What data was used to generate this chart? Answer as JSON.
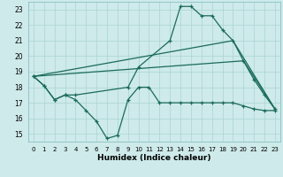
{
  "xlabel": "Humidex (Indice chaleur)",
  "background_color": "#ceeaea",
  "grid_color": "#aad4d4",
  "line_color": "#1a6b5a",
  "xlim": [
    -0.5,
    23.5
  ],
  "ylim": [
    14.5,
    23.5
  ],
  "xticks": [
    0,
    1,
    2,
    3,
    4,
    5,
    6,
    7,
    8,
    9,
    10,
    11,
    12,
    13,
    14,
    15,
    16,
    17,
    18,
    19,
    20,
    21,
    22,
    23
  ],
  "yticks": [
    15,
    16,
    17,
    18,
    19,
    20,
    21,
    22,
    23
  ],
  "line1_x": [
    0,
    1,
    2,
    3,
    4,
    5,
    6,
    7,
    8,
    9,
    10,
    11,
    12,
    13,
    14,
    15,
    16,
    17,
    18,
    19,
    20,
    21,
    22,
    23
  ],
  "line1_y": [
    18.7,
    18.1,
    17.2,
    17.5,
    17.2,
    16.5,
    15.8,
    14.7,
    14.9,
    17.2,
    18.0,
    18.0,
    17.0,
    17.0,
    17.0,
    17.0,
    17.0,
    17.0,
    17.0,
    17.0,
    16.8,
    16.6,
    16.5,
    16.5
  ],
  "line2_x": [
    0,
    1,
    2,
    3,
    4,
    9,
    10,
    13,
    14,
    15,
    16,
    17,
    18,
    19,
    20,
    21,
    22,
    23
  ],
  "line2_y": [
    18.7,
    18.1,
    17.2,
    17.5,
    17.5,
    18.0,
    19.3,
    21.0,
    23.2,
    23.2,
    22.6,
    22.6,
    21.7,
    21.0,
    19.7,
    18.5,
    17.5,
    16.6
  ],
  "line3_x": [
    0,
    19,
    23
  ],
  "line3_y": [
    18.7,
    21.0,
    16.6
  ],
  "line4_x": [
    0,
    20,
    23
  ],
  "line4_y": [
    18.7,
    19.7,
    16.6
  ]
}
